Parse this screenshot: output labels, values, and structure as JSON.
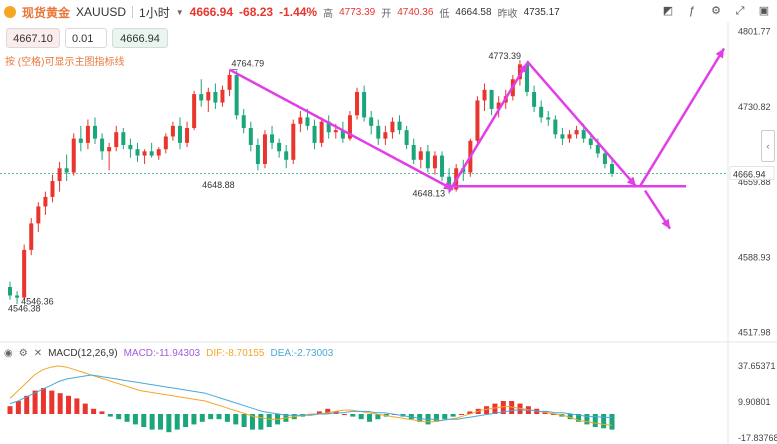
{
  "header": {
    "title": "现货黄金",
    "symbol": "XAUUSD",
    "timeframe": "1小时",
    "last_price": "4666.94",
    "change": "-68.23",
    "change_pct": "-1.44%",
    "high_label": "高",
    "high": "4773.39",
    "open_label": "开",
    "open": "4740.36",
    "low_label": "低",
    "low": "4664.58",
    "prev_close_label": "昨收",
    "prev_close": "4735.17"
  },
  "trade": {
    "sell_price": "4667.10",
    "quantity": "0.01",
    "buy_price": "4666.94"
  },
  "hint": "按 (空格)可显示主图指标线",
  "toolbar_icons": [
    "chart-type-icon",
    "indicator-icon",
    "settings-icon",
    "fullscreen-icon",
    "camera-icon"
  ],
  "price_axis": {
    "ticks": [
      "4801.77",
      "4730.82",
      "4666.94",
      "4659.88",
      "4588.93",
      "4517.98"
    ],
    "current": "4666.94"
  },
  "annotations": {
    "peak1": "4764.79",
    "trough1": "4648.88",
    "trough2": "4648.13",
    "peak2": "4773.39",
    "low_start": "4546.36",
    "low_point": "4546.38"
  },
  "macd": {
    "label": "MACD(12,26,9)",
    "macd_text": "MACD:-11.94303",
    "dif_text": "DIF:-8.70155",
    "dea_text": "DEA:-2.73003",
    "axis": [
      "37.65371",
      "9.90801",
      "-17.83768"
    ]
  },
  "colors": {
    "up": "#e8352e",
    "down": "#1aa57a",
    "magenta": "#e23ee8",
    "dif": "#f5a623",
    "dea": "#4aa8d8",
    "accent": "#e8783a"
  },
  "chart_data": {
    "type": "candlestick",
    "price_range": [
      4510,
      4810
    ],
    "candles": [
      [
        4560,
        4565,
        4548,
        4552
      ],
      [
        4552,
        4556,
        4544,
        4550
      ],
      [
        4550,
        4600,
        4548,
        4595
      ],
      [
        4595,
        4625,
        4590,
        4620
      ],
      [
        4620,
        4640,
        4612,
        4636
      ],
      [
        4636,
        4650,
        4628,
        4645
      ],
      [
        4645,
        4666,
        4640,
        4660
      ],
      [
        4660,
        4678,
        4650,
        4672
      ],
      [
        4672,
        4685,
        4660,
        4668
      ],
      [
        4668,
        4705,
        4665,
        4700
      ],
      [
        4700,
        4712,
        4688,
        4696
      ],
      [
        4696,
        4718,
        4690,
        4712
      ],
      [
        4712,
        4720,
        4695,
        4700
      ],
      [
        4700,
        4705,
        4680,
        4688
      ],
      [
        4688,
        4696,
        4670,
        4692
      ],
      [
        4692,
        4712,
        4688,
        4706
      ],
      [
        4706,
        4710,
        4690,
        4694
      ],
      [
        4694,
        4700,
        4682,
        4690
      ],
      [
        4690,
        4696,
        4678,
        4684
      ],
      [
        4684,
        4690,
        4676,
        4688
      ],
      [
        4688,
        4696,
        4682,
        4684
      ],
      [
        4684,
        4692,
        4680,
        4690
      ],
      [
        4690,
        4705,
        4686,
        4702
      ],
      [
        4702,
        4716,
        4698,
        4712
      ],
      [
        4712,
        4720,
        4690,
        4696
      ],
      [
        4696,
        4716,
        4692,
        4710
      ],
      [
        4710,
        4745,
        4708,
        4742
      ],
      [
        4742,
        4756,
        4730,
        4736
      ],
      [
        4736,
        4748,
        4725,
        4744
      ],
      [
        4744,
        4752,
        4728,
        4734
      ],
      [
        4734,
        4750,
        4730,
        4746
      ],
      [
        4746,
        4765,
        4740,
        4760
      ],
      [
        4760,
        4764,
        4718,
        4722
      ],
      [
        4722,
        4728,
        4705,
        4710
      ],
      [
        4710,
        4716,
        4688,
        4694
      ],
      [
        4694,
        4700,
        4670,
        4676
      ],
      [
        4676,
        4708,
        4672,
        4704
      ],
      [
        4704,
        4712,
        4690,
        4696
      ],
      [
        4696,
        4700,
        4682,
        4688
      ],
      [
        4688,
        4694,
        4672,
        4680
      ],
      [
        4680,
        4718,
        4676,
        4714
      ],
      [
        4714,
        4726,
        4706,
        4720
      ],
      [
        4720,
        4728,
        4708,
        4712
      ],
      [
        4712,
        4718,
        4690,
        4696
      ],
      [
        4696,
        4720,
        4692,
        4716
      ],
      [
        4716,
        4722,
        4700,
        4706
      ],
      [
        4706,
        4714,
        4700,
        4708
      ],
      [
        4708,
        4716,
        4696,
        4700
      ],
      [
        4700,
        4726,
        4698,
        4722
      ],
      [
        4722,
        4748,
        4718,
        4744
      ],
      [
        4744,
        4750,
        4716,
        4720
      ],
      [
        4720,
        4726,
        4704,
        4712
      ],
      [
        4712,
        4718,
        4694,
        4700
      ],
      [
        4700,
        4712,
        4694,
        4706
      ],
      [
        4706,
        4720,
        4700,
        4716
      ],
      [
        4716,
        4722,
        4704,
        4708
      ],
      [
        4708,
        4712,
        4690,
        4694
      ],
      [
        4694,
        4700,
        4676,
        4680
      ],
      [
        4680,
        4692,
        4672,
        4688
      ],
      [
        4688,
        4694,
        4668,
        4672
      ],
      [
        4672,
        4688,
        4666,
        4684
      ],
      [
        4684,
        4688,
        4660,
        4664
      ],
      [
        4664,
        4672,
        4648,
        4652
      ],
      [
        4652,
        4676,
        4650,
        4672
      ],
      [
        4672,
        4680,
        4660,
        4668
      ],
      [
        4668,
        4700,
        4664,
        4698
      ],
      [
        4698,
        4740,
        4694,
        4736
      ],
      [
        4736,
        4752,
        4726,
        4746
      ],
      [
        4746,
        4744,
        4722,
        4728
      ],
      [
        4728,
        4740,
        4720,
        4734
      ],
      [
        4734,
        4746,
        4728,
        4740
      ],
      [
        4740,
        4760,
        4736,
        4756
      ],
      [
        4756,
        4774,
        4750,
        4770
      ],
      [
        4770,
        4772,
        4740,
        4744
      ],
      [
        4744,
        4750,
        4725,
        4730
      ],
      [
        4730,
        4736,
        4715,
        4720
      ],
      [
        4720,
        4726,
        4712,
        4718
      ],
      [
        4718,
        4722,
        4700,
        4704
      ],
      [
        4704,
        4710,
        4694,
        4700
      ],
      [
        4700,
        4708,
        4696,
        4704
      ],
      [
        4704,
        4712,
        4700,
        4708
      ],
      [
        4708,
        4714,
        4696,
        4700
      ],
      [
        4700,
        4706,
        4690,
        4694
      ],
      [
        4694,
        4700,
        4682,
        4686
      ],
      [
        4686,
        4690,
        4672,
        4676
      ],
      [
        4676,
        4682,
        4664,
        4667
      ]
    ],
    "macd": {
      "dif": [
        12,
        18,
        24,
        30,
        34,
        36,
        37,
        36,
        34,
        32,
        30,
        28,
        26,
        24,
        22,
        20,
        18,
        17,
        16,
        15,
        14,
        13,
        12,
        11,
        10,
        8,
        6,
        4,
        2,
        0,
        -2,
        -3,
        -4,
        -4,
        -3,
        -2,
        -1,
        0,
        0,
        1,
        2,
        3,
        3,
        2,
        1,
        0,
        -1,
        -2,
        -3,
        -4,
        -5,
        -6,
        -6,
        -5,
        -4,
        -3,
        -1,
        1,
        3,
        4,
        5,
        6,
        5,
        4,
        3,
        2,
        1,
        0,
        -1,
        -3,
        -5,
        -6,
        -7,
        -8,
        -8.7
      ],
      "dea": [
        8,
        10,
        13,
        16,
        19,
        22,
        25,
        27,
        28,
        29,
        30,
        29,
        28,
        27,
        26,
        25,
        24,
        23,
        22,
        21,
        20,
        19,
        18,
        17,
        16,
        14,
        12,
        10,
        8,
        6,
        4,
        2,
        1,
        0,
        -1,
        -1,
        -1,
        -1,
        0,
        0,
        1,
        1,
        2,
        2,
        2,
        1,
        1,
        0,
        -1,
        -2,
        -3,
        -4,
        -4,
        -5,
        -4,
        -4,
        -3,
        -2,
        -1,
        0,
        1,
        2,
        3,
        3,
        3,
        2,
        2,
        1,
        1,
        0,
        -1,
        -2,
        -2,
        -2.5,
        -2.7
      ],
      "hist": [
        6,
        10,
        14,
        18,
        20,
        18,
        16,
        14,
        12,
        8,
        4,
        2,
        -2,
        -4,
        -6,
        -8,
        -10,
        -12,
        -12,
        -14,
        -12,
        -10,
        -8,
        -6,
        -4,
        -4,
        -6,
        -8,
        -10,
        -12,
        -12,
        -10,
        -8,
        -6,
        -4,
        -2,
        0,
        2,
        4,
        2,
        0,
        -2,
        -4,
        -6,
        -4,
        -2,
        0,
        -2,
        -4,
        -6,
        -8,
        -6,
        -4,
        -2,
        0,
        2,
        4,
        6,
        8,
        10,
        10,
        8,
        6,
        4,
        2,
        0,
        -2,
        -4,
        -6,
        -8,
        -10,
        -11,
        -12
      ]
    }
  }
}
